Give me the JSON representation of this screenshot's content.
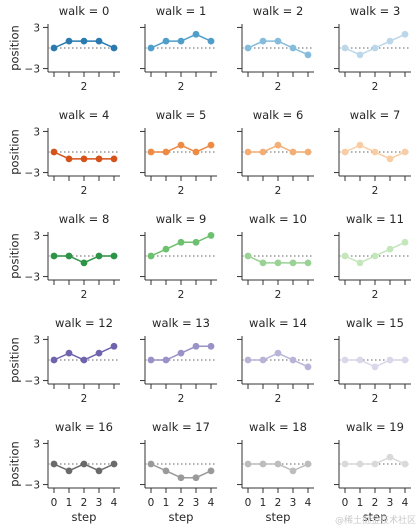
{
  "chart_data": {
    "type": "line",
    "layout": "facet-grid",
    "columns": 4,
    "x": [
      0,
      1,
      2,
      3,
      4
    ],
    "xlabel": "step",
    "ylabel": "position",
    "ylim": [
      -3.5,
      3.5
    ],
    "yticks": [
      3,
      -3
    ],
    "panel_xtick_label": "2",
    "xtick_labels": [
      "0",
      "1",
      "2",
      "3",
      "4"
    ],
    "reference_line": 0,
    "grid": false,
    "panels": [
      {
        "title": "walk = 0",
        "color": "#2a7ab0",
        "values": [
          0,
          1,
          1,
          1,
          0
        ]
      },
      {
        "title": "walk = 1",
        "color": "#4f9ec9",
        "values": [
          0,
          1,
          1,
          2,
          1
        ]
      },
      {
        "title": "walk = 2",
        "color": "#84bcdb",
        "values": [
          0,
          1,
          1,
          0,
          -1
        ]
      },
      {
        "title": "walk = 3",
        "color": "#bcd7ea",
        "values": [
          0,
          -1,
          0,
          1,
          2
        ]
      },
      {
        "title": "walk = 4",
        "color": "#d6521b",
        "values": [
          0,
          -1,
          -1,
          -1,
          -1
        ]
      },
      {
        "title": "walk = 5",
        "color": "#ed8a44",
        "values": [
          0,
          0,
          1,
          0,
          1
        ]
      },
      {
        "title": "walk = 6",
        "color": "#f3ae76",
        "values": [
          0,
          0,
          1,
          0,
          0
        ]
      },
      {
        "title": "walk = 7",
        "color": "#f9cda3",
        "values": [
          0,
          1,
          0,
          -1,
          0
        ]
      },
      {
        "title": "walk = 8",
        "color": "#2d9447",
        "values": [
          0,
          0,
          -1,
          0,
          0
        ]
      },
      {
        "title": "walk = 9",
        "color": "#6cc06e",
        "values": [
          0,
          1,
          2,
          2,
          3
        ]
      },
      {
        "title": "walk = 10",
        "color": "#99d294",
        "values": [
          0,
          -1,
          -1,
          -1,
          -1
        ]
      },
      {
        "title": "walk = 11",
        "color": "#c3e6bb",
        "values": [
          0,
          -1,
          0,
          1,
          2
        ]
      },
      {
        "title": "walk = 12",
        "color": "#6e63ad",
        "values": [
          0,
          1,
          0,
          1,
          2
        ]
      },
      {
        "title": "walk = 13",
        "color": "#9992c8",
        "values": [
          0,
          0,
          1,
          2,
          2
        ]
      },
      {
        "title": "walk = 14",
        "color": "#b8b4d8",
        "values": [
          0,
          0,
          1,
          0,
          -1
        ]
      },
      {
        "title": "walk = 15",
        "color": "#d9d8ea",
        "values": [
          0,
          0,
          -1,
          0,
          0
        ]
      },
      {
        "title": "walk = 16",
        "color": "#6a6a6a",
        "values": [
          0,
          -1,
          0,
          -1,
          0
        ]
      },
      {
        "title": "walk = 17",
        "color": "#9a9a9a",
        "values": [
          0,
          -1,
          -2,
          -2,
          -1
        ]
      },
      {
        "title": "walk = 18",
        "color": "#bdbdbd",
        "values": [
          0,
          0,
          0,
          -1,
          0
        ]
      },
      {
        "title": "walk = 19",
        "color": "#d9d9d9",
        "values": [
          0,
          0,
          0,
          1,
          0
        ]
      }
    ]
  },
  "watermark": "@稀土掘金技术社区"
}
